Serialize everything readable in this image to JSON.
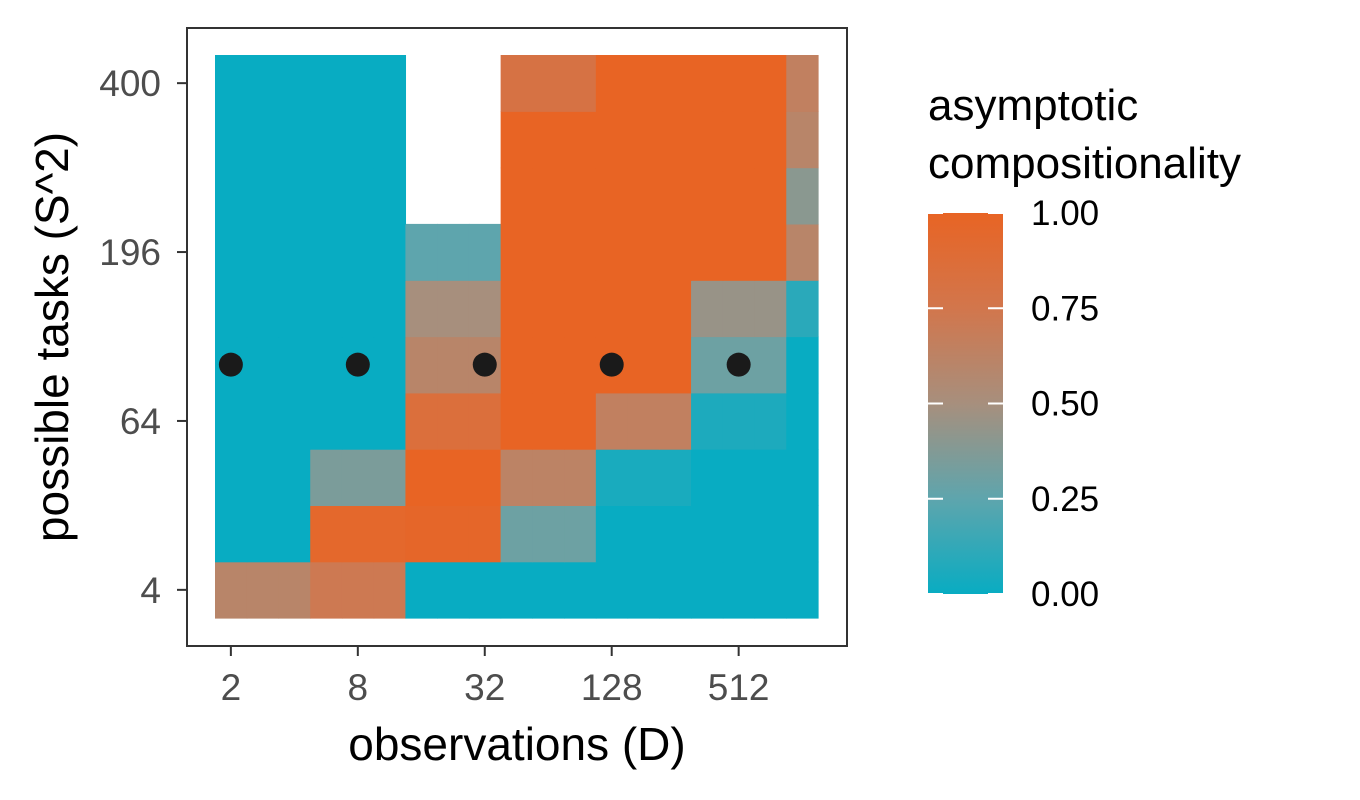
{
  "chart_data": {
    "type": "heatmap",
    "xlabel": "observations (D)",
    "ylabel": "possible tasks (S^2)",
    "x_values": [
      2,
      2.8284,
      4,
      5.6569,
      8,
      11.3137,
      16,
      22.6274,
      32,
      45.2548,
      64,
      90.5097,
      128,
      181.0193,
      256,
      362.0387,
      512,
      724.0773,
      1024
    ],
    "x_ticks": [
      "2",
      "8",
      "32",
      "128",
      "512"
    ],
    "x_scale": "log2",
    "y_values": [
      4,
      16,
      36,
      64,
      100,
      144,
      196,
      256,
      324,
      400
    ],
    "y_ticks": [
      "4",
      "64",
      "196",
      "400"
    ],
    "y_scale": "sqrt",
    "colorbar": {
      "title": "asymptotic\ncompositionality",
      "title_lines": [
        "asymptotic",
        "compositionality"
      ],
      "ticks": [
        "0.00",
        "0.25",
        "0.50",
        "0.75",
        "1.00"
      ],
      "low_color": "#08acc2",
      "high_color": "#e86424"
    },
    "cells_note": "values rows ordered from smallest y (4) to largest (400), columns from smallest x; null = no cell",
    "values": [
      [
        0.6,
        0.6,
        0.6,
        0.72,
        0.72,
        0.72,
        0.0,
        0.0,
        0.0,
        0.0,
        0.0,
        0.0,
        0.0,
        0.0,
        0.0,
        0.0,
        0.0,
        0.0,
        0.0
      ],
      [
        0.0,
        0.0,
        0.0,
        0.95,
        0.95,
        0.95,
        0.97,
        0.97,
        0.97,
        0.3,
        0.3,
        0.3,
        0.0,
        0.0,
        0.0,
        0.0,
        0.0,
        0.0,
        0.0
      ],
      [
        0.0,
        0.0,
        0.0,
        0.35,
        0.35,
        0.35,
        1.0,
        1.0,
        1.0,
        0.62,
        0.62,
        0.62,
        0.05,
        0.05,
        0.05,
        0.0,
        0.0,
        0.0,
        0.0
      ],
      [
        0.0,
        0.0,
        0.0,
        0.0,
        0.0,
        0.0,
        0.85,
        0.85,
        0.85,
        1.0,
        1.0,
        1.0,
        0.65,
        0.65,
        0.65,
        0.06,
        0.06,
        0.06,
        0.0
      ],
      [
        0.0,
        0.0,
        0.0,
        0.0,
        0.0,
        0.0,
        0.6,
        0.6,
        0.6,
        1.0,
        1.0,
        1.0,
        1.0,
        1.0,
        1.0,
        0.3,
        0.3,
        0.3,
        0.0
      ],
      [
        0.0,
        0.0,
        0.0,
        0.0,
        0.0,
        0.0,
        0.5,
        0.5,
        0.5,
        1.0,
        1.0,
        1.0,
        1.0,
        1.0,
        1.0,
        0.45,
        0.45,
        0.45,
        0.1
      ],
      [
        0.0,
        0.0,
        0.0,
        0.0,
        0.0,
        0.0,
        0.25,
        0.25,
        0.25,
        1.0,
        1.0,
        1.0,
        1.0,
        1.0,
        1.0,
        1.0,
        1.0,
        1.0,
        0.6
      ],
      [
        0.0,
        0.0,
        0.0,
        0.0,
        0.0,
        0.0,
        null,
        null,
        null,
        1.0,
        1.0,
        1.0,
        1.0,
        1.0,
        1.0,
        1.0,
        1.0,
        1.0,
        0.4
      ],
      [
        0.0,
        0.0,
        0.0,
        0.0,
        0.0,
        0.0,
        null,
        null,
        null,
        1.0,
        1.0,
        1.0,
        1.0,
        1.0,
        1.0,
        1.0,
        1.0,
        1.0,
        0.6
      ],
      [
        0.0,
        0.0,
        0.0,
        0.0,
        0.0,
        0.0,
        null,
        null,
        null,
        0.8,
        0.8,
        0.8,
        1.0,
        1.0,
        1.0,
        1.0,
        1.0,
        1.0,
        0.65
      ]
    ],
    "points": [
      {
        "x": 2,
        "y": 100
      },
      {
        "x": 8,
        "y": 100
      },
      {
        "x": 32,
        "y": 100
      },
      {
        "x": 128,
        "y": 100
      },
      {
        "x": 512,
        "y": 100
      }
    ],
    "point_color": "#1a1a1a",
    "grid": false
  }
}
